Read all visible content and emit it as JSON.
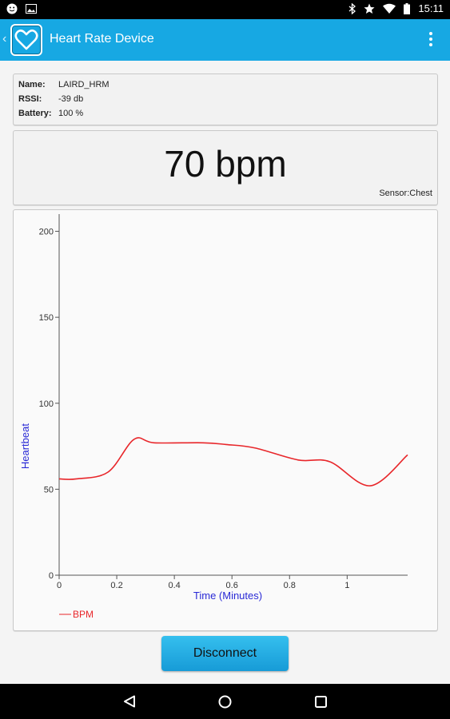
{
  "status_bar": {
    "time": "15:11",
    "icons": [
      "notification-face-icon",
      "image-icon",
      "bluetooth-icon",
      "star-icon",
      "wifi-icon",
      "battery-icon"
    ]
  },
  "app_bar": {
    "title": "Heart Rate Device",
    "color": "#17a8e3",
    "icons": [
      "back-chevron-icon",
      "heart-logo-icon",
      "overflow-menu-icon"
    ]
  },
  "device_info": {
    "name_label": "Name:",
    "name_value": "LAIRD_HRM",
    "rssi_label": "RSSI:",
    "rssi_value": "-39 db",
    "battery_label": "Battery:",
    "battery_value": "100 %"
  },
  "heart_rate": {
    "value": "70 bpm",
    "sensor": "Sensor:Chest"
  },
  "chart_data": {
    "type": "line",
    "title": "",
    "xlabel": "Time (Minutes)",
    "ylabel": "Heartbeat",
    "xlim": [
      0,
      1.21
    ],
    "ylim": [
      0,
      210
    ],
    "x_ticks": [
      "0",
      "0.2",
      "0.4",
      "0.6",
      "0.8",
      "1"
    ],
    "y_ticks": [
      "0",
      "50",
      "100",
      "150",
      "200"
    ],
    "legend": "bottom-left",
    "grid": false,
    "axis_label_color": "#2a2ad6",
    "series": [
      {
        "name": "BPM",
        "color": "#e8262a",
        "x": [
          0,
          0.06,
          0.17,
          0.26,
          0.33,
          0.5,
          0.58,
          0.68,
          0.83,
          0.94,
          1.08,
          1.21
        ],
        "y": [
          56,
          56,
          60,
          79,
          77,
          77,
          76,
          74,
          67,
          66,
          52,
          70
        ]
      }
    ]
  },
  "actions": {
    "disconnect_label": "Disconnect"
  },
  "nav_bar": {
    "icons": [
      "back-triangle-icon",
      "home-circle-icon",
      "recents-square-icon"
    ]
  }
}
